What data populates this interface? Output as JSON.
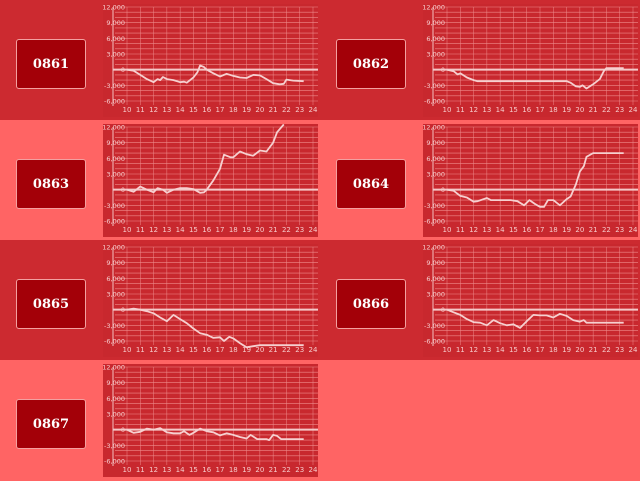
{
  "colors": {
    "dark_row": "#cc2a30",
    "light_row": "#ff6464",
    "plot_bg": "#c8282e",
    "button": "#a30008",
    "line": "#f6d0d0"
  },
  "axis": {
    "y_ticks": [
      12000,
      9000,
      6000,
      3000,
      0,
      -3000,
      -6000
    ],
    "y_tick_labels": [
      "12,000",
      "9,000",
      "6,000",
      "3,000",
      "0",
      "-3,000",
      "-6,000"
    ],
    "x_ticks": [
      10,
      11,
      12,
      13,
      14,
      15,
      16,
      17,
      18,
      19,
      20,
      21,
      22,
      23,
      24
    ],
    "ylim": [
      -6000,
      12000
    ],
    "xlim": [
      10,
      24
    ]
  },
  "chart_data": [
    {
      "type": "line",
      "id": "0861",
      "x": [
        10,
        10.5,
        11,
        11.5,
        12,
        12.3,
        12.5,
        12.7,
        13,
        13.5,
        14,
        14.3,
        14.5,
        15,
        15.3,
        15.5,
        15.8,
        16,
        16.5,
        17,
        17.5,
        18,
        18.5,
        19,
        19.5,
        20,
        20.5,
        21,
        21.5,
        21.8,
        22,
        22.5,
        23.3
      ],
      "y": [
        0,
        -200,
        -1000,
        -1800,
        -2400,
        -1800,
        -2000,
        -1400,
        -1800,
        -2000,
        -2400,
        -2300,
        -2500,
        -1500,
        -500,
        800,
        500,
        0,
        -700,
        -1300,
        -800,
        -1200,
        -1500,
        -1600,
        -1000,
        -1100,
        -1800,
        -2600,
        -2800,
        -2700,
        -1900,
        -2100,
        -2200
      ]
    },
    {
      "type": "line",
      "id": "0862",
      "x": [
        10,
        10.5,
        10.8,
        11,
        11.5,
        12,
        12.3,
        19,
        19.3,
        19.7,
        20,
        20.2,
        20.5,
        21,
        21.5,
        21.8,
        22,
        23.3
      ],
      "y": [
        0,
        -300,
        -900,
        -700,
        -1500,
        -2000,
        -2200,
        -2200,
        -2500,
        -3200,
        -3300,
        -3000,
        -3600,
        -2800,
        -1800,
        -300,
        300,
        300
      ]
    },
    {
      "type": "line",
      "id": "0863",
      "x": [
        10,
        10.5,
        11,
        11.5,
        12,
        12.3,
        12.7,
        13,
        13.5,
        14,
        14.5,
        15,
        15.5,
        15.8,
        16,
        16.5,
        17,
        17.3,
        17.8,
        18,
        18.5,
        19,
        19.5,
        20,
        20.5,
        21,
        21.3,
        21.8
      ],
      "y": [
        0,
        -400,
        600,
        0,
        -500,
        300,
        0,
        -600,
        0,
        300,
        300,
        100,
        -600,
        -500,
        0,
        1800,
        4000,
        6700,
        6200,
        6200,
        7300,
        6800,
        6500,
        7500,
        7300,
        9000,
        11000,
        12500
      ]
    },
    {
      "type": "line",
      "id": "0864",
      "x": [
        10,
        10.5,
        11,
        11.5,
        12,
        12.3,
        13,
        13.3,
        14,
        14.8,
        15.3,
        15.8,
        16.2,
        16.6,
        17,
        17.3,
        17.6,
        18,
        18.5,
        19,
        19.3,
        19.7,
        20,
        20.3,
        20.5,
        21,
        23.3
      ],
      "y": [
        0,
        -200,
        -1200,
        -1500,
        -2300,
        -2200,
        -1600,
        -2000,
        -2000,
        -2000,
        -2200,
        -3000,
        -2000,
        -2700,
        -3300,
        -3300,
        -2000,
        -2000,
        -3000,
        -1800,
        -1300,
        1000,
        3500,
        4500,
        6300,
        7000,
        7000
      ]
    },
    {
      "type": "line",
      "id": "0865",
      "x": [
        10,
        10.5,
        11,
        11.5,
        12,
        12.5,
        13,
        13.3,
        13.5,
        14,
        14.5,
        15,
        15.5,
        16,
        16.5,
        17,
        17.3,
        17.7,
        18,
        18.5,
        19,
        19.5,
        20,
        23.3
      ],
      "y": [
        0,
        200,
        0,
        -300,
        -700,
        -1500,
        -2200,
        -1500,
        -1000,
        -1800,
        -2600,
        -3600,
        -4500,
        -4800,
        -5400,
        -5300,
        -6000,
        -5200,
        -5500,
        -6400,
        -7200,
        -7000,
        -6800,
        -6800
      ]
    },
    {
      "type": "line",
      "id": "0866",
      "x": [
        10,
        10.5,
        11,
        11.5,
        12,
        12.5,
        13,
        13.5,
        14,
        14.5,
        15,
        15.5,
        16,
        16.5,
        17,
        17.5,
        18,
        18.5,
        19,
        19.5,
        20,
        20.3,
        20.5,
        23.3
      ],
      "y": [
        0,
        -500,
        -1000,
        -1800,
        -2400,
        -2500,
        -3000,
        -2000,
        -2600,
        -3000,
        -2800,
        -3500,
        -2200,
        -1000,
        -1100,
        -1100,
        -1500,
        -800,
        -1200,
        -2000,
        -2300,
        -2000,
        -2500,
        -2500
      ]
    },
    {
      "type": "line",
      "id": "0867",
      "x": [
        10,
        10.5,
        11,
        11.5,
        12,
        12.5,
        13,
        13.5,
        14,
        14.3,
        14.7,
        15,
        15.5,
        16,
        16.5,
        17,
        17.5,
        18,
        18.5,
        19,
        19.3,
        19.8,
        20.5,
        20.7,
        21,
        21.3,
        21.6,
        23.3
      ],
      "y": [
        0,
        -600,
        -400,
        200,
        0,
        300,
        -500,
        -700,
        -700,
        -300,
        -1000,
        -600,
        200,
        -300,
        -500,
        -1100,
        -700,
        -1000,
        -1400,
        -1700,
        -1000,
        -1800,
        -1800,
        -2000,
        -1000,
        -1200,
        -1800,
        -1800
      ]
    }
  ]
}
